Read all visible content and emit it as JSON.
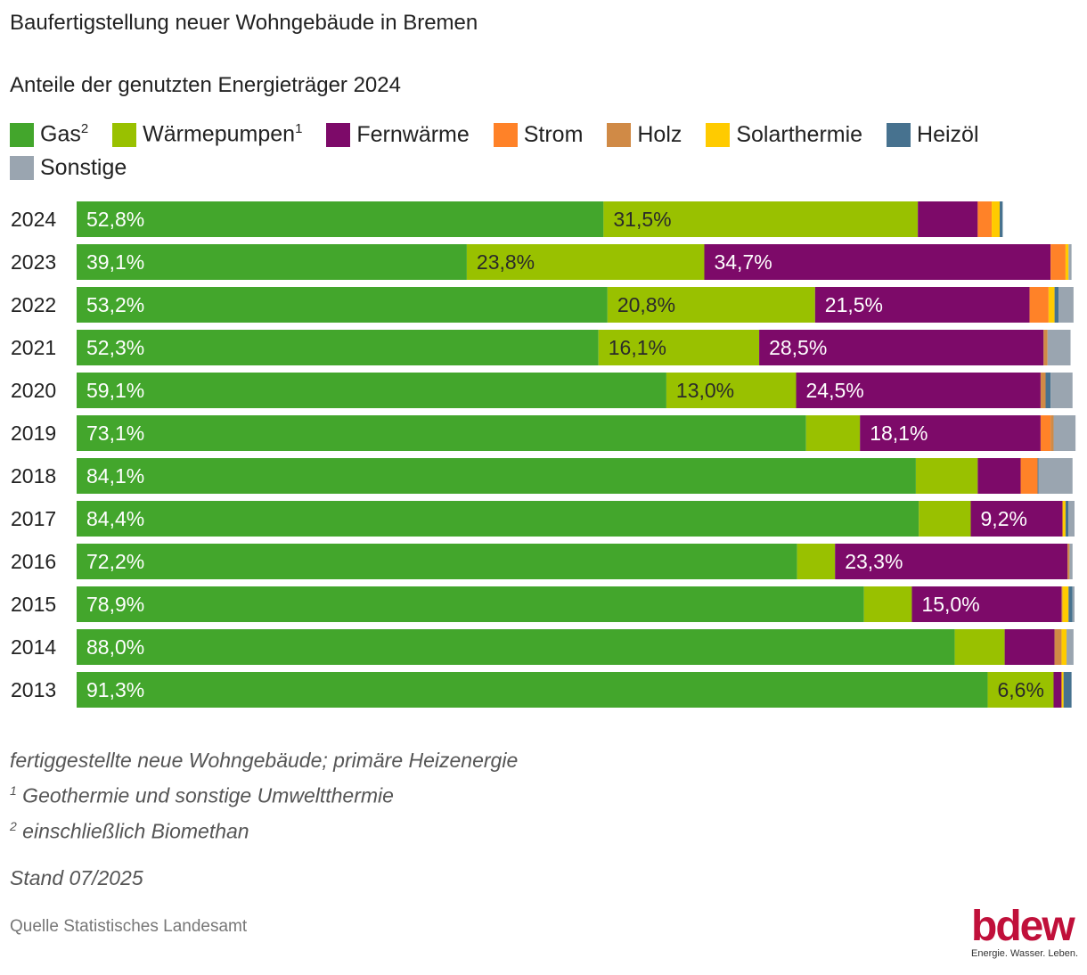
{
  "header": {
    "title": "Baufertigstellung neuer Wohngebäude in Bremen",
    "subtitle": "Anteile der genutzten Energieträger 2024"
  },
  "legend": [
    {
      "label": "Gas",
      "sup": "2",
      "color": "#43a62c"
    },
    {
      "label": "Wärmepumpen",
      "sup": "1",
      "color": "#99c100"
    },
    {
      "label": "Fernwärme",
      "sup": "",
      "color": "#7d0a69"
    },
    {
      "label": "Strom",
      "sup": "",
      "color": "#ff8228"
    },
    {
      "label": "Holz",
      "sup": "",
      "color": "#d08a46"
    },
    {
      "label": "Solarthermie",
      "sup": "",
      "color": "#ffcb00"
    },
    {
      "label": "Heizöl",
      "sup": "",
      "color": "#47728f"
    },
    {
      "label": "Sonstige",
      "sup": "",
      "color": "#9aa5b0"
    }
  ],
  "chart_data": {
    "type": "bar",
    "orientation": "horizontal",
    "stacked": true,
    "categories": [
      "2024",
      "2023",
      "2022",
      "2021",
      "2020",
      "2019",
      "2018",
      "2017",
      "2016",
      "2015",
      "2014",
      "2013"
    ],
    "series": [
      {
        "name": "Gas²",
        "color": "#43a62c",
        "values": [
          52.8,
          39.1,
          53.2,
          52.3,
          59.1,
          73.1,
          84.1,
          84.4,
          72.2,
          78.9,
          88.0,
          91.3
        ]
      },
      {
        "name": "Wärmepumpen¹",
        "color": "#99c100",
        "values": [
          31.5,
          23.8,
          20.8,
          16.1,
          13.0,
          5.4,
          6.2,
          5.2,
          3.8,
          4.8,
          5.0,
          6.6
        ]
      },
      {
        "name": "Fernwärme",
        "color": "#7d0a69",
        "values": [
          6.0,
          34.7,
          21.5,
          28.5,
          24.5,
          18.1,
          4.3,
          9.2,
          23.3,
          15.0,
          5.0,
          0.8
        ]
      },
      {
        "name": "Strom",
        "color": "#ff8228",
        "values": [
          1.4,
          1.5,
          1.9,
          0.0,
          0.0,
          1.0,
          1.7,
          0.0,
          0.0,
          0.0,
          0.0,
          0.0
        ]
      },
      {
        "name": "Holz",
        "color": "#d08a46",
        "values": [
          0.0,
          0.0,
          0.0,
          0.4,
          0.5,
          0.3,
          0.0,
          0.0,
          0.2,
          0.1,
          0.7,
          0.0
        ]
      },
      {
        "name": "Solarthermie",
        "color": "#ffcb00",
        "values": [
          0.8,
          0.3,
          0.6,
          0.0,
          0.0,
          0.0,
          0.0,
          0.3,
          0.0,
          0.6,
          0.5,
          0.2
        ]
      },
      {
        "name": "Heizöl",
        "color": "#47728f",
        "values": [
          0.3,
          0.0,
          0.4,
          0.0,
          0.5,
          0.0,
          0.1,
          0.3,
          0.0,
          0.4,
          0.0,
          0.8
        ]
      },
      {
        "name": "Sonstige",
        "color": "#9aa5b0",
        "values": [
          0.0,
          0.3,
          1.5,
          2.3,
          2.2,
          2.2,
          3.4,
          0.6,
          0.3,
          0.2,
          0.7,
          0.0
        ]
      }
    ],
    "data_labels": [
      {
        "series": 0,
        "row": 0,
        "text": "52,8%"
      },
      {
        "series": 1,
        "row": 0,
        "text": "31,5%"
      },
      {
        "series": 0,
        "row": 1,
        "text": "39,1%"
      },
      {
        "series": 1,
        "row": 1,
        "text": "23,8%"
      },
      {
        "series": 2,
        "row": 1,
        "text": "34,7%"
      },
      {
        "series": 0,
        "row": 2,
        "text": "53,2%"
      },
      {
        "series": 1,
        "row": 2,
        "text": "20,8%"
      },
      {
        "series": 2,
        "row": 2,
        "text": "21,5%"
      },
      {
        "series": 0,
        "row": 3,
        "text": "52,3%"
      },
      {
        "series": 1,
        "row": 3,
        "text": "16,1%"
      },
      {
        "series": 2,
        "row": 3,
        "text": "28,5%"
      },
      {
        "series": 0,
        "row": 4,
        "text": "59,1%"
      },
      {
        "series": 1,
        "row": 4,
        "text": "13,0%"
      },
      {
        "series": 2,
        "row": 4,
        "text": "24,5%"
      },
      {
        "series": 0,
        "row": 5,
        "text": "73,1%"
      },
      {
        "series": 2,
        "row": 5,
        "text": "18,1%"
      },
      {
        "series": 0,
        "row": 6,
        "text": "84,1%"
      },
      {
        "series": 0,
        "row": 7,
        "text": "84,4%"
      },
      {
        "series": 2,
        "row": 7,
        "text": "9,2%"
      },
      {
        "series": 0,
        "row": 8,
        "text": "72,2%"
      },
      {
        "series": 2,
        "row": 8,
        "text": "23,3%"
      },
      {
        "series": 0,
        "row": 9,
        "text": "78,9%"
      },
      {
        "series": 2,
        "row": 9,
        "text": "15,0%"
      },
      {
        "series": 0,
        "row": 10,
        "text": "88,0%"
      },
      {
        "series": 0,
        "row": 11,
        "text": "91,3%"
      },
      {
        "series": 1,
        "row": 11,
        "text": "6,6%"
      }
    ],
    "xlim": [
      0,
      100
    ],
    "grid": false,
    "legend_position": "top"
  },
  "notes": {
    "line1": "fertiggestellte neue Wohngebäude; primäre Heizenergie",
    "line2_sup": "1",
    "line2": " Geothermie und sonstige Umweltthermie",
    "line3_sup": "2",
    "line3": " einschließlich Biomethan"
  },
  "stand": "Stand 07/2025",
  "source": "Quelle Statistisches Landesamt",
  "logo": {
    "word": "bdew",
    "tagline": "Energie. Wasser. Leben."
  }
}
